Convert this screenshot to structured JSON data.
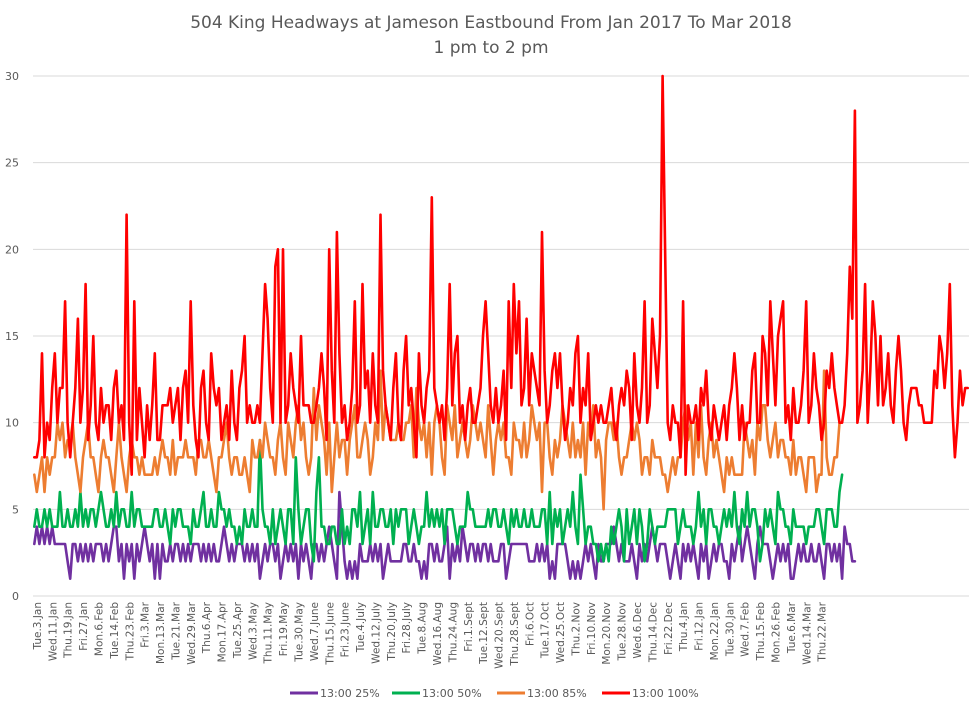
{
  "chart_data": {
    "type": "line",
    "title": "504 King Headways at Jameson Eastbound From Jan 2017 To Mar 2018",
    "subtitle": "1 pm to 2 pm",
    "xlabel": "",
    "ylabel": "",
    "ylim": [
      0,
      30
    ],
    "yticks": [
      0,
      5,
      10,
      15,
      20,
      25,
      30
    ],
    "grid": true,
    "legend_position": "bottom",
    "x_tick_labels": [
      "Tue.3.Jan",
      "Wed.11.Jan",
      "Thu.19.Jan",
      "Fri.27.Jan",
      "Mon.6.Feb",
      "Tue.14.Feb",
      "Thu.23.Feb",
      "Fri.3.Mar",
      "Mon.13.Mar",
      "Tue.21.Mar",
      "Wed.29.Mar",
      "Thu.6.Apr",
      "Mon.17.Apr",
      "Tue.25.Apr",
      "Wed.3.May",
      "Thu.11.May",
      "Fri.19.May",
      "Tue.30.May",
      "Wed.7.June",
      "Thu.15.June",
      "Fri.23.June",
      "Tue.4.July",
      "Wed.12.July",
      "Thu.20.July",
      "Fri.28.July",
      "Tue.8.Aug",
      "Wed.16.Aug",
      "Thu.24.Aug",
      "Fri.1.Sept",
      "Tue.12.Sept",
      "Wed.20.Sept",
      "Thu.28.Sept",
      "Fri.6.Oct",
      "Tue.17.Oct",
      "Wed.25.Oct",
      "Thu.2.Nov",
      "Fri.10.Nov",
      "Mon.20.Nov",
      "Tue.28.Nov",
      "Wed.6.Dec",
      "Thu.14.Dec",
      "Fri.22.Dec",
      "Thu.4.Jan",
      "Fri.12.Jan",
      "Mon.22.Jan",
      "Tue.30.Jan",
      "Wed.7.Feb",
      "Thu.15.Feb",
      "Mon.26.Feb",
      "Tue.6.Mar",
      "Wed.14.Mar",
      "Thu.22.Mar"
    ],
    "points_per_label": 6,
    "series": [
      {
        "name": "13:00 25%",
        "color": "#7030a0",
        "values": [
          3,
          4,
          3,
          4,
          3,
          4,
          3,
          4,
          3,
          3,
          3,
          3,
          3,
          2,
          1,
          3,
          3,
          2,
          3,
          2,
          3,
          2,
          3,
          2,
          3,
          3,
          3,
          2,
          3,
          2,
          3,
          4,
          4,
          2,
          3,
          1,
          3,
          2,
          3,
          1,
          3,
          2,
          3,
          4,
          3,
          2,
          3,
          1,
          3,
          1,
          3,
          2,
          2,
          3,
          2,
          3,
          3,
          2,
          3,
          2,
          3,
          2,
          3,
          3,
          3,
          2,
          3,
          2,
          3,
          2,
          3,
          2,
          2,
          3,
          4,
          3,
          2,
          3,
          2,
          3,
          3,
          3,
          2,
          3,
          2,
          3,
          2,
          3,
          1,
          2,
          3,
          2,
          3,
          3,
          2,
          3,
          1,
          2,
          3,
          2,
          3,
          2,
          3,
          1,
          3,
          2,
          3,
          2,
          1,
          3,
          3,
          2,
          3,
          2,
          3,
          4,
          3,
          2,
          1,
          6,
          4,
          2,
          1,
          2,
          1,
          2,
          1,
          3,
          2,
          2,
          2,
          3,
          2,
          3,
          2,
          3,
          1,
          2,
          3,
          2,
          2,
          2,
          2,
          2,
          3,
          3,
          2,
          2,
          3,
          2,
          2,
          1,
          2,
          1,
          3,
          3,
          2,
          3,
          2,
          2,
          3,
          4,
          1,
          3,
          2,
          3,
          2,
          4,
          3,
          2,
          3,
          3,
          2,
          3,
          2,
          3,
          3,
          2,
          3,
          2,
          2,
          2,
          3,
          3,
          1,
          2,
          3,
          3,
          3,
          3,
          3,
          3,
          3,
          2,
          2,
          2,
          3,
          2,
          3,
          2,
          3,
          1,
          2,
          1,
          3,
          3,
          3,
          3,
          2,
          1,
          2,
          1,
          2,
          1,
          2,
          3,
          2,
          3,
          2,
          1,
          3,
          2,
          2,
          3,
          3,
          3,
          4,
          3,
          2,
          3,
          2,
          2,
          2,
          3,
          2,
          1,
          3,
          2,
          3,
          2,
          3,
          4,
          3,
          2,
          3,
          3,
          3,
          2,
          1,
          2,
          3,
          2,
          1,
          3,
          2,
          3,
          2,
          3,
          2,
          1,
          3,
          2,
          3,
          1,
          2,
          3,
          2,
          3,
          3,
          2,
          2,
          1,
          3,
          2,
          3,
          4,
          2,
          3,
          4,
          3,
          2,
          1,
          3,
          4,
          3,
          3,
          3,
          2,
          1,
          2,
          3,
          2,
          3,
          2,
          3,
          1,
          1,
          2,
          3,
          2,
          3,
          2,
          2,
          3,
          2,
          2,
          3,
          2,
          1,
          3,
          3,
          2,
          3,
          2,
          3,
          1,
          4,
          3,
          3,
          2,
          2
        ],
        "note": "approximate trace of dense daily data"
      },
      {
        "name": "13:00 50%",
        "color": "#00b050",
        "values": [
          4,
          5,
          4,
          4,
          5,
          4,
          5,
          4,
          4,
          4,
          6,
          4,
          4,
          5,
          4,
          4,
          5,
          4,
          6,
          4,
          5,
          4,
          5,
          5,
          4,
          5,
          6,
          5,
          4,
          4,
          5,
          4,
          6,
          4,
          5,
          5,
          4,
          4,
          6,
          4,
          5,
          5,
          4,
          4,
          4,
          4,
          4,
          5,
          5,
          4,
          4,
          5,
          4,
          3,
          5,
          4,
          5,
          5,
          4,
          4,
          4,
          3,
          5,
          4,
          4,
          5,
          6,
          4,
          4,
          5,
          4,
          4,
          6,
          5,
          5,
          4,
          5,
          4,
          4,
          3,
          4,
          3,
          5,
          4,
          4,
          5,
          4,
          4,
          9,
          5,
          4,
          4,
          3,
          5,
          3,
          4,
          5,
          4,
          3,
          5,
          5,
          3,
          8,
          5,
          3,
          4,
          5,
          5,
          3,
          2,
          6,
          8,
          4,
          4,
          3,
          3,
          4,
          4,
          3,
          3,
          5,
          3,
          4,
          3,
          5,
          5,
          4,
          6,
          3,
          4,
          5,
          3,
          6,
          4,
          4,
          5,
          5,
          4,
          4,
          5,
          3,
          5,
          4,
          5,
          5,
          5,
          3,
          4,
          5,
          4,
          3,
          4,
          4,
          6,
          4,
          5,
          4,
          5,
          4,
          5,
          3,
          5,
          5,
          5,
          4,
          3,
          4,
          4,
          4,
          6,
          5,
          5,
          4,
          4,
          4,
          4,
          4,
          5,
          4,
          5,
          5,
          4,
          4,
          5,
          4,
          3,
          5,
          4,
          5,
          4,
          4,
          5,
          4,
          4,
          5,
          4,
          4,
          4,
          5,
          5,
          3,
          6,
          3,
          5,
          4,
          5,
          3,
          4,
          5,
          4,
          6,
          4,
          3,
          7,
          5,
          3,
          4,
          4,
          3,
          3,
          2,
          3,
          2,
          3,
          2,
          4,
          3,
          4,
          5,
          4,
          2,
          5,
          3,
          4,
          5,
          3,
          5,
          4,
          2,
          3,
          5,
          4,
          3,
          4,
          4,
          4,
          4,
          5,
          5,
          5,
          5,
          3,
          4,
          5,
          4,
          4,
          4,
          3,
          4,
          6,
          4,
          5,
          3,
          5,
          5,
          4,
          4,
          3,
          4,
          5,
          4,
          5,
          4,
          6,
          4,
          3,
          5,
          4,
          6,
          4,
          5,
          5,
          4,
          2,
          3,
          5,
          4,
          5,
          4,
          3,
          6,
          5,
          5,
          4,
          4,
          3,
          5,
          4,
          4,
          4,
          4,
          3,
          4,
          4,
          4,
          5,
          5,
          4,
          3,
          5,
          5,
          5,
          4,
          4,
          6,
          7
        ],
        "note": "approximate trace of dense daily data"
      },
      {
        "name": "13:00 85%",
        "color": "#ed7d31",
        "values": [
          7,
          6,
          7,
          8,
          6,
          8,
          7,
          8,
          8,
          10,
          9,
          10,
          8,
          9,
          9,
          10,
          8,
          7,
          6,
          8,
          9,
          10,
          8,
          8,
          7,
          6,
          8,
          9,
          8,
          8,
          7,
          6,
          8,
          10,
          8,
          7,
          6,
          8,
          9,
          8,
          8,
          7,
          8,
          7,
          7,
          7,
          7,
          8,
          7,
          8,
          9,
          8,
          8,
          7,
          9,
          7,
          8,
          8,
          8,
          9,
          8,
          8,
          8,
          7,
          9,
          9,
          8,
          8,
          9,
          8,
          7,
          6,
          8,
          8,
          9,
          10,
          8,
          7,
          8,
          8,
          7,
          7,
          8,
          7,
          6,
          9,
          8,
          8,
          9,
          8,
          10,
          9,
          8,
          8,
          7,
          9,
          10,
          8,
          7,
          10,
          9,
          8,
          10,
          11,
          9,
          10,
          8,
          7,
          8,
          12,
          9,
          11,
          10,
          9,
          7,
          10,
          6,
          8,
          10,
          8,
          9,
          9,
          7,
          9,
          10,
          11,
          8,
          8,
          9,
          10,
          9,
          7,
          8,
          10,
          9,
          13,
          9,
          11,
          10,
          9,
          9,
          9,
          10,
          9,
          9,
          10,
          10,
          11,
          8,
          12,
          10,
          9,
          10,
          8,
          10,
          7,
          10,
          11,
          10,
          8,
          7,
          11,
          10,
          9,
          11,
          8,
          9,
          10,
          9,
          8,
          9,
          11,
          10,
          9,
          10,
          9,
          8,
          11,
          9,
          7,
          9,
          10,
          9,
          10,
          8,
          8,
          7,
          10,
          9,
          9,
          8,
          10,
          8,
          9,
          11,
          10,
          9,
          10,
          6,
          10,
          10,
          8,
          7,
          9,
          8,
          9,
          11,
          10,
          9,
          8,
          10,
          8,
          9,
          8,
          10,
          7,
          10,
          9,
          11,
          8,
          9,
          8,
          5,
          9,
          10,
          10,
          9,
          10,
          8,
          7,
          8,
          8,
          9,
          10,
          9,
          10,
          9,
          7,
          8,
          8,
          7,
          9,
          8,
          8,
          8,
          7,
          7,
          6,
          7,
          8,
          7,
          8,
          8,
          10,
          11,
          9,
          10,
          7,
          10,
          8,
          11,
          8,
          7,
          9,
          10,
          8,
          9,
          8,
          7,
          6,
          8,
          7,
          8,
          7,
          7,
          7,
          7,
          10,
          9,
          8,
          9,
          7,
          10,
          9,
          11,
          11,
          9,
          8,
          9,
          10,
          8,
          9,
          9,
          8,
          8,
          7,
          9,
          7,
          8,
          8,
          7,
          6,
          8,
          8,
          8,
          6,
          7,
          7,
          13,
          8,
          7,
          7,
          8,
          8,
          10
        ],
        "note": "approximate trace of dense daily data"
      },
      {
        "name": "13:00 100%",
        "color": "#ff0000",
        "values": [
          8,
          8,
          9,
          14,
          8,
          10,
          9,
          12,
          14,
          10,
          12,
          12,
          17,
          10,
          8,
          10,
          12,
          16,
          10,
          12,
          18,
          9,
          11,
          15,
          10,
          9,
          12,
          10,
          11,
          11,
          9,
          12,
          13,
          10,
          11,
          9,
          22,
          10,
          7,
          17,
          9,
          12,
          10,
          8,
          11,
          9,
          11,
          14,
          9,
          9,
          11,
          11,
          11,
          12,
          10,
          11,
          12,
          9,
          12,
          13,
          10,
          17,
          11,
          9,
          8,
          12,
          13,
          10,
          9,
          14,
          12,
          11,
          12,
          9,
          10,
          11,
          9,
          13,
          10,
          9,
          12,
          13,
          15,
          10,
          11,
          10,
          10,
          11,
          10,
          14,
          18,
          16,
          12,
          10,
          19,
          20,
          10,
          20,
          10,
          11,
          14,
          12,
          11,
          10,
          15,
          11,
          11,
          11,
          10,
          10,
          11,
          12,
          14,
          12,
          9,
          20,
          13,
          10,
          21,
          14,
          10,
          11,
          9,
          10,
          12,
          17,
          10,
          11,
          18,
          12,
          13,
          10,
          14,
          11,
          10,
          22,
          13,
          11,
          10,
          9,
          12,
          14,
          10,
          9,
          13,
          15,
          11,
          12,
          10,
          8,
          14,
          11,
          10,
          12,
          13,
          23,
          12,
          11,
          10,
          11,
          9,
          12,
          18,
          11,
          14,
          15,
          10,
          11,
          9,
          11,
          12,
          10,
          10,
          11,
          12,
          15,
          17,
          14,
          11,
          10,
          12,
          10,
          11,
          13,
          9,
          17,
          12,
          18,
          14,
          17,
          11,
          12,
          16,
          11,
          14,
          13,
          12,
          11,
          21,
          13,
          10,
          11,
          13,
          14,
          12,
          14,
          11,
          9,
          10,
          12,
          11,
          14,
          15,
          10,
          12,
          11,
          14,
          9,
          10,
          11,
          10,
          11,
          10,
          10,
          11,
          12,
          10,
          9,
          11,
          12,
          11,
          13,
          12,
          9,
          14,
          11,
          10,
          12,
          17,
          10,
          11,
          16,
          14,
          12,
          15,
          30,
          20,
          10,
          9,
          11,
          10,
          10,
          8,
          17,
          7,
          11,
          10,
          10,
          11,
          9,
          12,
          11,
          13,
          10,
          9,
          11,
          10,
          9,
          10,
          11,
          9,
          11,
          12,
          14,
          12,
          9,
          11,
          9,
          10,
          10,
          13,
          14,
          10,
          10,
          15,
          14,
          11,
          17,
          14,
          11,
          15,
          16,
          17,
          10,
          11,
          9,
          12,
          10,
          10,
          11,
          13,
          17,
          10,
          11,
          14,
          12,
          11,
          9,
          10,
          13,
          12,
          14,
          12,
          11,
          10,
          10,
          11,
          14,
          19,
          16,
          28,
          10,
          11,
          13,
          18,
          10,
          13,
          17,
          15,
          11,
          15,
          11,
          12,
          14,
          11,
          10,
          13,
          15,
          13,
          10,
          9,
          11,
          12,
          12,
          12,
          11,
          11,
          10,
          10,
          10,
          10,
          13,
          12,
          15,
          14,
          12,
          14,
          18,
          11,
          8,
          10,
          13,
          11,
          12,
          12
        ],
        "note": "approximate trace of dense daily data"
      }
    ]
  }
}
